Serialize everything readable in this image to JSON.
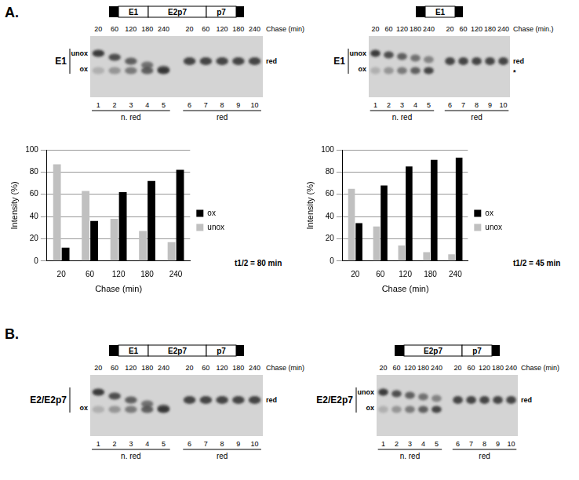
{
  "chart_data": [
    {
      "type": "bar",
      "categories": [
        20,
        60,
        120,
        180,
        240
      ],
      "x_label": "Chase (min)",
      "y_label": "Intensity (%)",
      "series": [
        {
          "name": "unox",
          "color": "#c0c0c0",
          "values": [
            87,
            63,
            38,
            27,
            17
          ]
        },
        {
          "name": "ox",
          "color": "#000000",
          "values": [
            12,
            36,
            62,
            72,
            82
          ]
        }
      ],
      "ylim": [
        0,
        100
      ],
      "yticks": [
        0,
        20,
        40,
        60,
        80,
        100
      ],
      "grid": true,
      "legend": "right",
      "annotations": [
        "t1/2 = 80 min"
      ]
    },
    {
      "type": "bar",
      "categories": [
        20,
        60,
        120,
        180,
        240
      ],
      "x_label": "Chase (min)",
      "y_label": "Intensity (%)",
      "series": [
        {
          "name": "unox",
          "color": "#c0c0c0",
          "values": [
            65,
            31,
            14,
            8,
            6
          ]
        },
        {
          "name": "ox",
          "color": "#000000",
          "values": [
            34,
            68,
            85,
            91,
            93
          ]
        }
      ],
      "ylim": [
        0,
        100
      ],
      "yticks": [
        0,
        20,
        40,
        60,
        80,
        100
      ],
      "grid": true,
      "legend": "right",
      "annotations": [
        "t1/2 = 45 min"
      ]
    }
  ],
  "figure": {
    "panels": [
      {
        "letter": "A.",
        "gels": [
          {
            "construct": [
              "E1",
              "E2p7",
              "p7"
            ],
            "chase_label": "Chase (min)",
            "chase": [
              20,
              60,
              120,
              180,
              240,
              20,
              60,
              120,
              180,
              240
            ],
            "lanes": [
              1,
              2,
              3,
              4,
              5,
              6,
              7,
              8,
              9,
              10
            ],
            "groups": [
              "n. red",
              "red"
            ],
            "protein": "E1",
            "bands_left": [
              "unox",
              "ox"
            ],
            "bands_right": [
              "red"
            ]
          },
          {
            "construct": [
              "E1"
            ],
            "chase_label": "Chase (min.)",
            "chase": [
              20,
              60,
              120,
              180,
              240,
              20,
              60,
              120,
              180,
              240
            ],
            "lanes": [
              1,
              2,
              3,
              4,
              5,
              6,
              7,
              8,
              9,
              10
            ],
            "groups": [
              "n. red",
              "red"
            ],
            "protein": "E1",
            "bands_left": [
              "unox",
              "ox"
            ],
            "bands_right": [
              "red",
              "*"
            ]
          }
        ]
      },
      {
        "letter": "B.",
        "gels": [
          {
            "construct": [
              "E1",
              "E2p7",
              "p7"
            ],
            "chase_label": "Chase (min)",
            "chase": [
              20,
              60,
              120,
              180,
              240,
              20,
              60,
              120,
              180,
              240
            ],
            "lanes": [
              1,
              2,
              3,
              4,
              5,
              6,
              7,
              8,
              9,
              10
            ],
            "groups": [
              "n. red",
              "red"
            ],
            "protein": "E2/E2p7",
            "bands_left": [
              "ox"
            ],
            "bands_right": [
              "red"
            ]
          },
          {
            "construct": [
              "E2p7",
              "p7"
            ],
            "chase_label": "Chase (min)",
            "chase": [
              20,
              60,
              120,
              180,
              240,
              20,
              60,
              120,
              180,
              240
            ],
            "lanes": [
              1,
              2,
              3,
              4,
              5,
              6,
              7,
              8,
              9,
              10
            ],
            "groups": [
              "n. red",
              "red"
            ],
            "protein": "E2/E2p7",
            "bands_left": [
              "unox",
              "ox"
            ],
            "bands_right": [
              "red"
            ]
          }
        ]
      }
    ]
  }
}
